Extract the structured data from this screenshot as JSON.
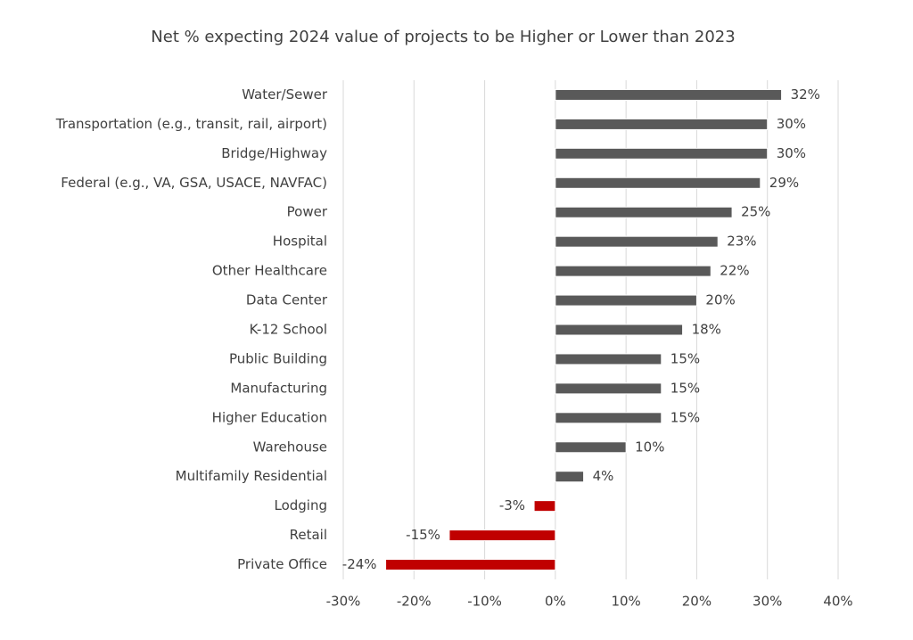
{
  "chart_data": {
    "type": "hbar",
    "title": "Net % expecting 2024 value of projects to be Higher or Lower than 2023",
    "categories": [
      "Water/Sewer",
      "Transportation (e.g., transit, rail, airport)",
      "Bridge/Highway",
      "Federal (e.g., VA, GSA, USACE, NAVFAC)",
      "Power",
      "Hospital",
      "Other Healthcare",
      "Data Center",
      "K-12 School",
      "Public Building",
      "Manufacturing",
      "Higher Education",
      "Warehouse",
      "Multifamily Residential",
      "Lodging",
      "Retail",
      "Private Office"
    ],
    "values": [
      32,
      30,
      30,
      29,
      25,
      23,
      22,
      20,
      18,
      15,
      15,
      15,
      10,
      4,
      -3,
      -15,
      -24
    ],
    "value_labels": [
      "32%",
      "30%",
      "30%",
      "29%",
      "25%",
      "23%",
      "22%",
      "20%",
      "18%",
      "15%",
      "15%",
      "15%",
      "10%",
      "4%",
      "-3%",
      "-15%",
      "-24%"
    ],
    "color": "#595959",
    "negative_color": "#c00000",
    "xlim": [
      -30,
      40
    ],
    "xticks": [
      {
        "value": -30,
        "label": "-30%"
      },
      {
        "value": -20,
        "label": "-20%"
      },
      {
        "value": -10,
        "label": "-10%"
      },
      {
        "value": 0,
        "label": "0%"
      },
      {
        "value": 10,
        "label": "10%"
      },
      {
        "value": 20,
        "label": "20%"
      },
      {
        "value": 30,
        "label": "30%"
      },
      {
        "value": 40,
        "label": "40%"
      }
    ],
    "grid": true
  }
}
